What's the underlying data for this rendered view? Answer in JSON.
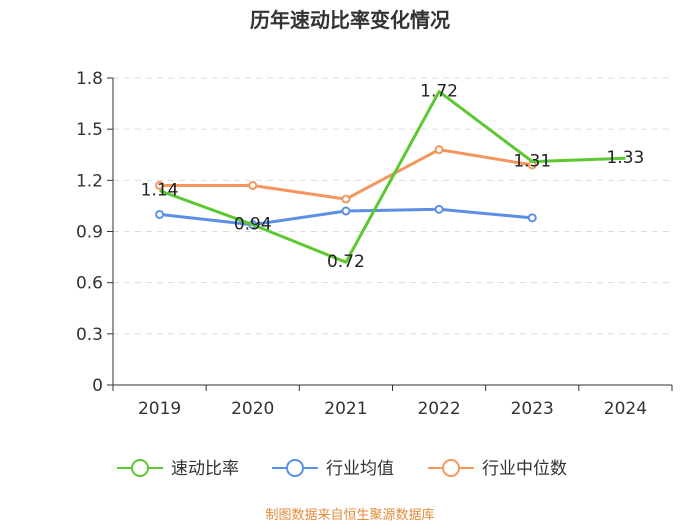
{
  "chart_data": {
    "type": "line",
    "title": "历年速动比率变化情况",
    "categories": [
      "2019",
      "2020",
      "2021",
      "2022",
      "2023",
      "2024"
    ],
    "y_ticks": [
      "0",
      "0.3",
      "0.6",
      "0.9",
      "1.2",
      "1.5",
      "1.8"
    ],
    "ylim": [
      0,
      1.8
    ],
    "grid": true,
    "legend_position": "bottom",
    "series": [
      {
        "name": "速动比率",
        "color": "#5dc832",
        "values": [
          1.14,
          0.94,
          0.72,
          1.72,
          1.31,
          1.33
        ],
        "data_labels": [
          "1.14",
          "0.94",
          "0.72",
          "1.72",
          "1.31",
          "1.33"
        ],
        "show_markers": false
      },
      {
        "name": "行业均值",
        "color": "#5b8ee6",
        "values": [
          1.0,
          0.94,
          1.02,
          1.03,
          0.98,
          null
        ],
        "show_markers": true
      },
      {
        "name": "行业中位数",
        "color": "#f4965e",
        "values": [
          1.17,
          1.17,
          1.09,
          1.38,
          1.29,
          null
        ],
        "show_markers": true
      }
    ],
    "source_note": "制图数据来自恒生聚源数据库",
    "source_color": "#e08a3a"
  }
}
